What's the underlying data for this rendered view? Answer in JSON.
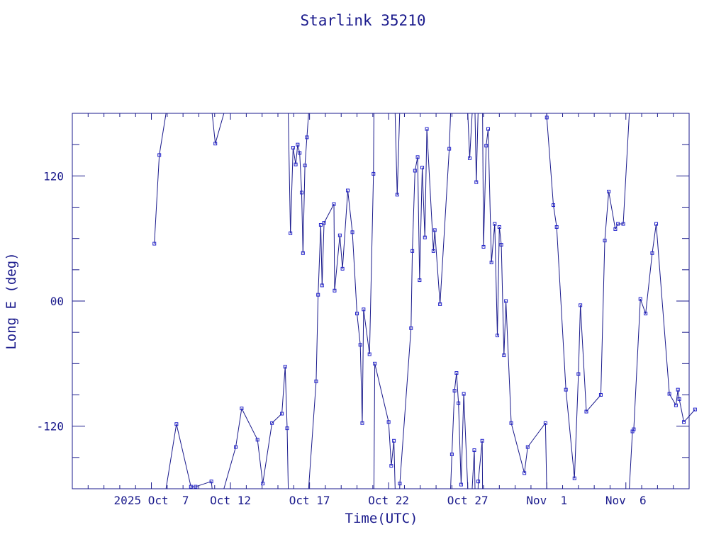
{
  "chart_data": {
    "type": "line",
    "title": "Starlink 35210",
    "xlabel": "Time(UTC)",
    "ylabel": "Long E (deg)",
    "xlim": [
      "2025-10-02T00:00",
      "2025-11-10T00:00"
    ],
    "ylim": [
      -180,
      180
    ],
    "x_ticks": [
      {
        "label": "2025 Oct  7",
        "date": "2025-10-07"
      },
      {
        "label": "Oct 12",
        "date": "2025-10-12"
      },
      {
        "label": "Oct 17",
        "date": "2025-10-17"
      },
      {
        "label": "Oct 22",
        "date": "2025-10-22"
      },
      {
        "label": "Oct 27",
        "date": "2025-10-27"
      },
      {
        "label": "Nov  1",
        "date": "2025-11-01"
      },
      {
        "label": "Nov  6",
        "date": "2025-11-06"
      }
    ],
    "y_ticks": [
      {
        "label": "120",
        "value": 120
      },
      {
        "label": "00",
        "value": 0
      },
      {
        "label": "-120",
        "value": -120
      }
    ],
    "grid": false,
    "line_color": "#1a1a8c",
    "marker_color": "#2222cc",
    "series": [
      {
        "points": [
          [
            "2025-10-07T04:30",
            55
          ],
          [
            "2025-10-07T12:00",
            140
          ],
          [
            "2025-10-08T14:00",
            -118
          ],
          [
            "2025-10-09T12:00",
            -178
          ],
          [
            "2025-10-09T19:00",
            -178
          ],
          [
            "2025-10-10T19:00",
            -173
          ],
          [
            "2025-10-11T01:00",
            151
          ],
          [
            "2025-10-12T08:00",
            -140
          ],
          [
            "2025-10-12T17:00",
            -103
          ],
          [
            "2025-10-13T17:00",
            -133
          ],
          [
            "2025-10-14T01:00",
            -175
          ],
          [
            "2025-10-14T15:00",
            -117
          ],
          [
            "2025-10-15T06:00",
            -108
          ],
          [
            "2025-10-15T11:00",
            -63
          ],
          [
            "2025-10-15T14:00",
            -122
          ],
          [
            "2025-10-15T19:00",
            65
          ],
          [
            "2025-10-15T23:00",
            147
          ],
          [
            "2025-10-16T03:00",
            131
          ],
          [
            "2025-10-16T06:00",
            150
          ],
          [
            "2025-10-16T09:00",
            142
          ],
          [
            "2025-10-16T12:00",
            104
          ],
          [
            "2025-10-16T14:00",
            46
          ],
          [
            "2025-10-16T17:00",
            130
          ],
          [
            "2025-10-16T20:00",
            157
          ],
          [
            "2025-10-17T10:00",
            -77
          ],
          [
            "2025-10-17T13:00",
            6
          ],
          [
            "2025-10-17T17:00",
            73
          ],
          [
            "2025-10-17T19:00",
            15
          ],
          [
            "2025-10-17T22:00",
            75
          ],
          [
            "2025-10-18T13:00",
            93
          ],
          [
            "2025-10-18T14:00",
            10
          ],
          [
            "2025-10-18T22:00",
            63
          ],
          [
            "2025-10-19T02:00",
            31
          ],
          [
            "2025-10-19T10:00",
            106
          ],
          [
            "2025-10-19T17:00",
            66
          ],
          [
            "2025-10-20T00:00",
            -12
          ],
          [
            "2025-10-20T05:00",
            -42
          ],
          [
            "2025-10-20T08:00",
            -117
          ],
          [
            "2025-10-20T10:00",
            -8
          ],
          [
            "2025-10-20T19:00",
            -51
          ],
          [
            "2025-10-21T01:00",
            122
          ],
          [
            "2025-10-21T03:00",
            -60
          ],
          [
            "2025-10-22T00:00",
            -116
          ],
          [
            "2025-10-22T04:00",
            -158
          ],
          [
            "2025-10-22T08:00",
            -134
          ],
          [
            "2025-10-22T13:00",
            102
          ],
          [
            "2025-10-22T17:00",
            -175
          ],
          [
            "2025-10-23T10:00",
            -26
          ],
          [
            "2025-10-23T12:00",
            48
          ],
          [
            "2025-10-23T16:00",
            125
          ],
          [
            "2025-10-23T20:00",
            138
          ],
          [
            "2025-10-23T23:00",
            20
          ],
          [
            "2025-10-24T03:00",
            128
          ],
          [
            "2025-10-24T07:00",
            61
          ],
          [
            "2025-10-24T10:00",
            165
          ],
          [
            "2025-10-24T20:00",
            48
          ],
          [
            "2025-10-24T22:00",
            68
          ],
          [
            "2025-10-25T06:00",
            -3
          ],
          [
            "2025-10-25T20:00",
            146
          ],
          [
            "2025-10-26T00:00",
            -147
          ],
          [
            "2025-10-26T04:00",
            -86
          ],
          [
            "2025-10-26T07:00",
            -69
          ],
          [
            "2025-10-26T10:00",
            -98
          ],
          [
            "2025-10-26T14:00",
            -176
          ],
          [
            "2025-10-26T18:00",
            -89
          ],
          [
            "2025-10-27T03:00",
            137
          ],
          [
            "2025-10-27T10:00",
            -143
          ],
          [
            "2025-10-27T13:00",
            114
          ],
          [
            "2025-10-27T16:00",
            -173
          ],
          [
            "2025-10-27T22:00",
            -134
          ],
          [
            "2025-10-28T00:00",
            52
          ],
          [
            "2025-10-28T04:00",
            149
          ],
          [
            "2025-10-28T07:00",
            165
          ],
          [
            "2025-10-28T12:00",
            37
          ],
          [
            "2025-10-28T17:00",
            74
          ],
          [
            "2025-10-28T21:00",
            -33
          ],
          [
            "2025-10-29T00:00",
            71
          ],
          [
            "2025-10-29T03:00",
            54
          ],
          [
            "2025-10-29T07:00",
            -52
          ],
          [
            "2025-10-29T10:00",
            0
          ],
          [
            "2025-10-29T18:00",
            -117
          ],
          [
            "2025-10-30T14:00",
            -165
          ],
          [
            "2025-10-30T19:00",
            -140
          ],
          [
            "2025-10-31T22:00",
            -117
          ],
          [
            "2025-11-01T00:00",
            176
          ],
          [
            "2025-11-01T10:00",
            92
          ],
          [
            "2025-11-01T15:00",
            71
          ],
          [
            "2025-11-02T05:00",
            -85
          ],
          [
            "2025-11-02T18:00",
            -170
          ],
          [
            "2025-11-03T00:00",
            -70
          ],
          [
            "2025-11-03T03:00",
            -4
          ],
          [
            "2025-11-03T12:00",
            -106
          ],
          [
            "2025-11-04T10:00",
            -90
          ],
          [
            "2025-11-04T16:00",
            58
          ],
          [
            "2025-11-04T22:00",
            105
          ],
          [
            "2025-11-05T08:00",
            69
          ],
          [
            "2025-11-05T12:00",
            74
          ],
          [
            "2025-11-05T20:00",
            74
          ],
          [
            "2025-11-06T10:00",
            -125
          ],
          [
            "2025-11-06T12:00",
            -123
          ],
          [
            "2025-11-06T22:00",
            2
          ],
          [
            "2025-11-07T06:00",
            -12
          ],
          [
            "2025-11-07T16:00",
            46
          ],
          [
            "2025-11-07T22:00",
            74
          ],
          [
            "2025-11-08T18:00",
            -89
          ],
          [
            "2025-11-09T04:00",
            -100
          ],
          [
            "2025-11-09T07:00",
            -85
          ],
          [
            "2025-11-09T09:00",
            -94
          ],
          [
            "2025-11-09T16:00",
            -116
          ],
          [
            "2025-11-10T09:00",
            -104
          ]
        ]
      }
    ]
  }
}
